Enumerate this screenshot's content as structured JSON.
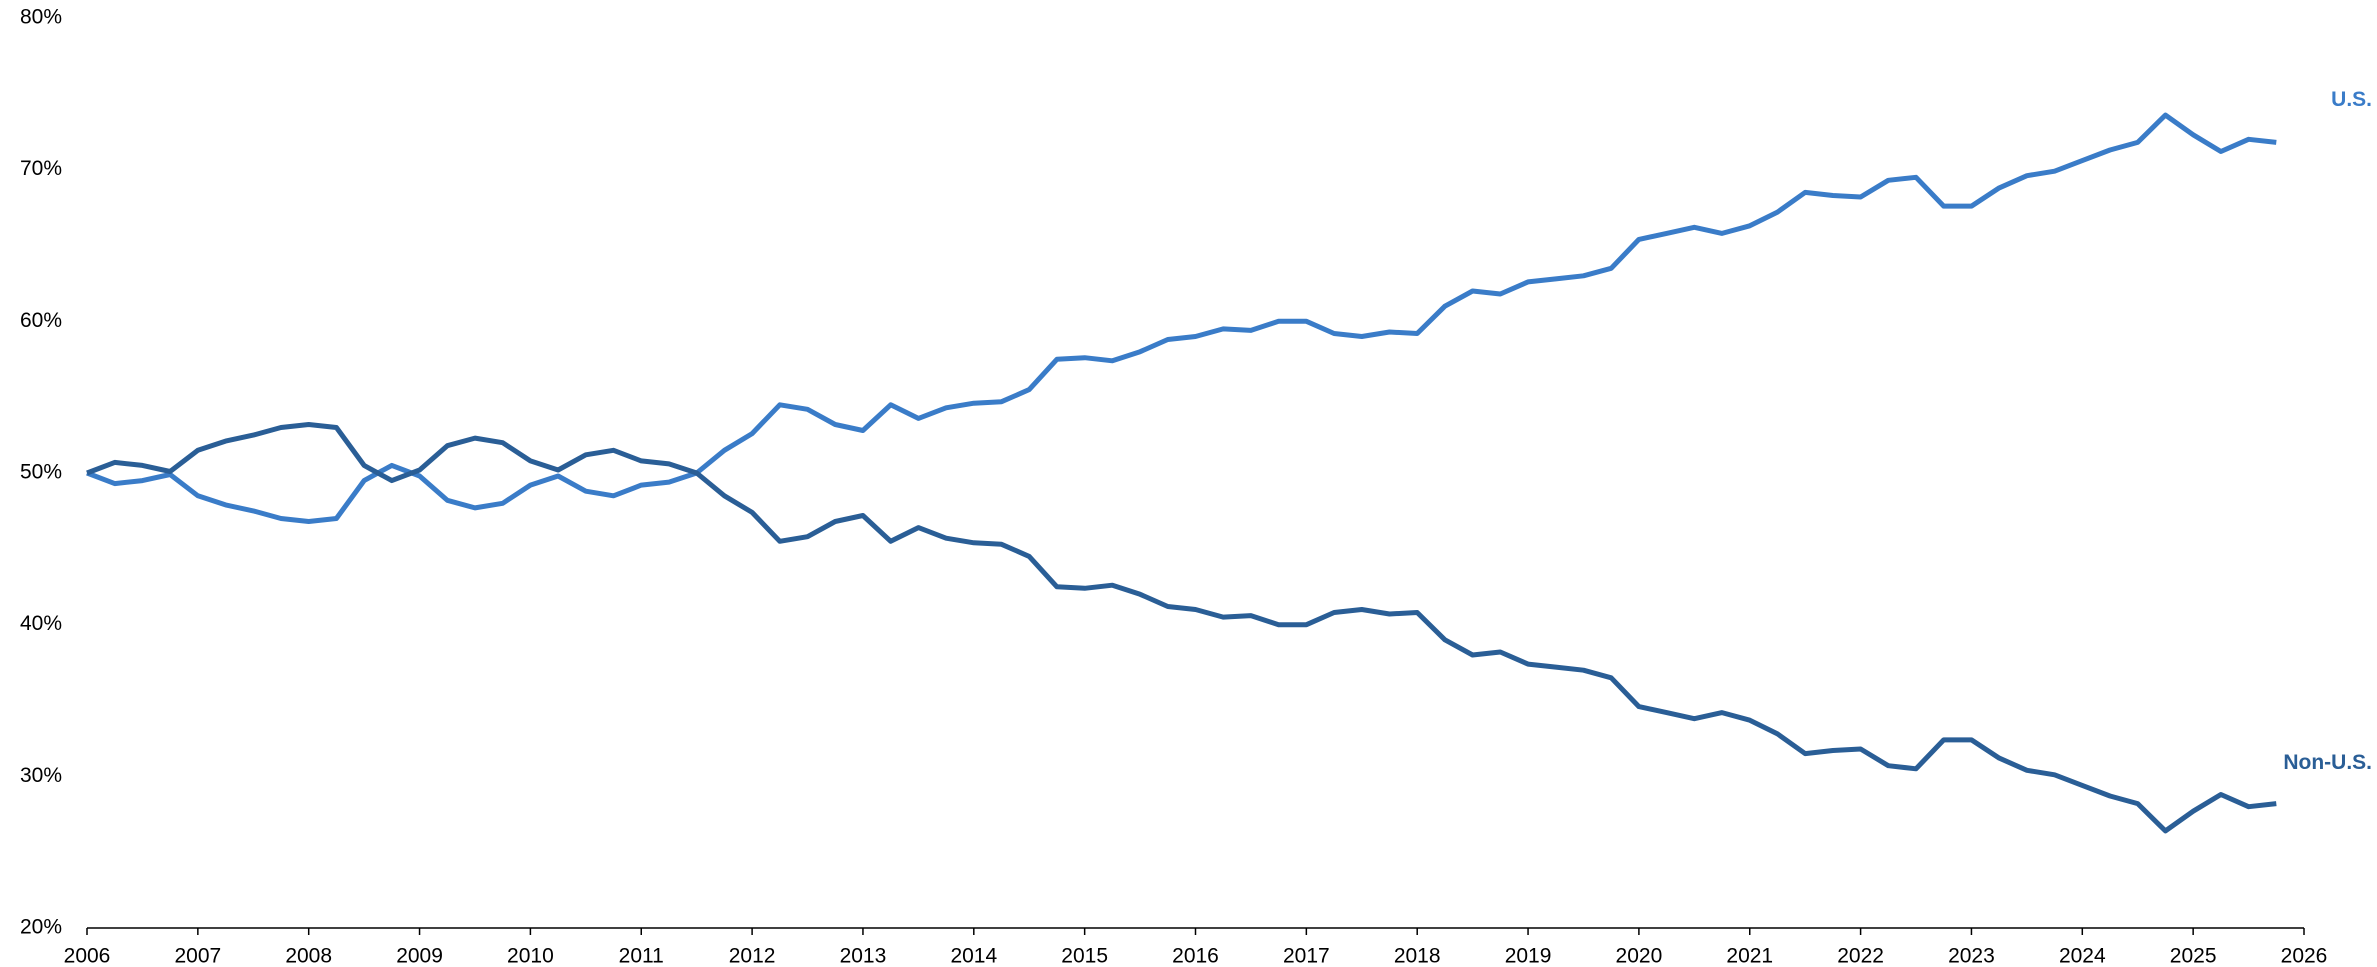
{
  "chart_data": {
    "type": "line",
    "x": [
      2006,
      2006.25,
      2006.5,
      2006.75,
      2007,
      2007.25,
      2007.5,
      2007.75,
      2008,
      2008.25,
      2008.5,
      2008.75,
      2009,
      2009.25,
      2009.5,
      2009.75,
      2010,
      2010.25,
      2010.5,
      2010.75,
      2011,
      2011.25,
      2011.5,
      2011.75,
      2012,
      2012.25,
      2012.5,
      2012.75,
      2013,
      2013.25,
      2013.5,
      2013.75,
      2014,
      2014.25,
      2014.5,
      2014.75,
      2015,
      2015.25,
      2015.5,
      2015.75,
      2016,
      2016.25,
      2016.5,
      2016.75,
      2017,
      2017.25,
      2017.5,
      2017.75,
      2018,
      2018.25,
      2018.5,
      2018.75,
      2019,
      2019.25,
      2019.5,
      2019.75,
      2020,
      2020.25,
      2020.5,
      2020.75,
      2021,
      2021.25,
      2021.5,
      2021.75,
      2022,
      2022.25,
      2022.5,
      2022.75,
      2023,
      2023.25,
      2023.5,
      2023.75,
      2024,
      2024.25,
      2024.5,
      2024.75,
      2025,
      2025.25,
      2025.5,
      2025.75
    ],
    "series": [
      {
        "name": "U.S.",
        "color": "#3a7cc8",
        "values": [
          50,
          49.3,
          49.5,
          49.9,
          48.5,
          47.9,
          47.5,
          47.0,
          46.8,
          47.0,
          49.5,
          50.5,
          49.8,
          48.2,
          47.7,
          48.0,
          49.2,
          49.8,
          48.8,
          48.5,
          49.2,
          49.4,
          50.0,
          51.5,
          52.6,
          54.5,
          54.2,
          53.2,
          52.8,
          54.5,
          53.6,
          54.3,
          54.6,
          54.7,
          55.5,
          57.5,
          57.6,
          57.4,
          58.0,
          58.8,
          59.0,
          59.5,
          59.4,
          60.0,
          60.0,
          59.2,
          59.0,
          59.3,
          59.2,
          61.0,
          62.0,
          61.8,
          62.6,
          62.8,
          63.0,
          63.5,
          65.4,
          65.8,
          66.2,
          65.8,
          66.3,
          67.2,
          68.5,
          68.3,
          68.2,
          69.3,
          69.5,
          67.6,
          67.6,
          68.8,
          69.6,
          69.9,
          70.6,
          71.3,
          71.8,
          73.6,
          72.3,
          71.2,
          72.0,
          71.8
        ]
      },
      {
        "name": "Non-U.S.",
        "color": "#2a5e96",
        "values": [
          50,
          50.7,
          50.5,
          50.1,
          51.5,
          52.1,
          52.5,
          53.0,
          53.2,
          53.0,
          50.5,
          49.5,
          50.2,
          51.8,
          52.3,
          52.0,
          50.8,
          50.2,
          51.2,
          51.5,
          50.8,
          50.6,
          50.0,
          48.5,
          47.4,
          45.5,
          45.8,
          46.8,
          47.2,
          45.5,
          46.4,
          45.7,
          45.4,
          45.3,
          44.5,
          42.5,
          42.4,
          42.6,
          42.0,
          41.2,
          41.0,
          40.5,
          40.6,
          40.0,
          40.0,
          40.8,
          41.0,
          40.7,
          40.8,
          39.0,
          38.0,
          38.2,
          37.4,
          37.2,
          37.0,
          36.5,
          34.6,
          34.2,
          33.8,
          34.2,
          33.7,
          32.8,
          31.5,
          31.7,
          31.8,
          30.7,
          30.5,
          32.4,
          32.4,
          31.2,
          30.4,
          30.1,
          29.4,
          28.7,
          28.2,
          26.4,
          27.7,
          28.8,
          28.0,
          28.2
        ]
      }
    ],
    "xlim": [
      2006,
      2026
    ],
    "xticks": [
      2006,
      2007,
      2008,
      2009,
      2010,
      2011,
      2012,
      2013,
      2014,
      2015,
      2016,
      2017,
      2018,
      2019,
      2020,
      2021,
      2022,
      2023,
      2024,
      2025,
      2026
    ],
    "ylim": [
      20,
      80
    ],
    "yticks": [
      {
        "value": 20,
        "label": "20%"
      },
      {
        "value": 30,
        "label": "30%"
      },
      {
        "value": 40,
        "label": "40%"
      },
      {
        "value": 50,
        "label": "50%"
      },
      {
        "value": 60,
        "label": "60%"
      },
      {
        "value": 70,
        "label": "70%"
      },
      {
        "value": 80,
        "label": "80%"
      }
    ],
    "grid": false
  }
}
